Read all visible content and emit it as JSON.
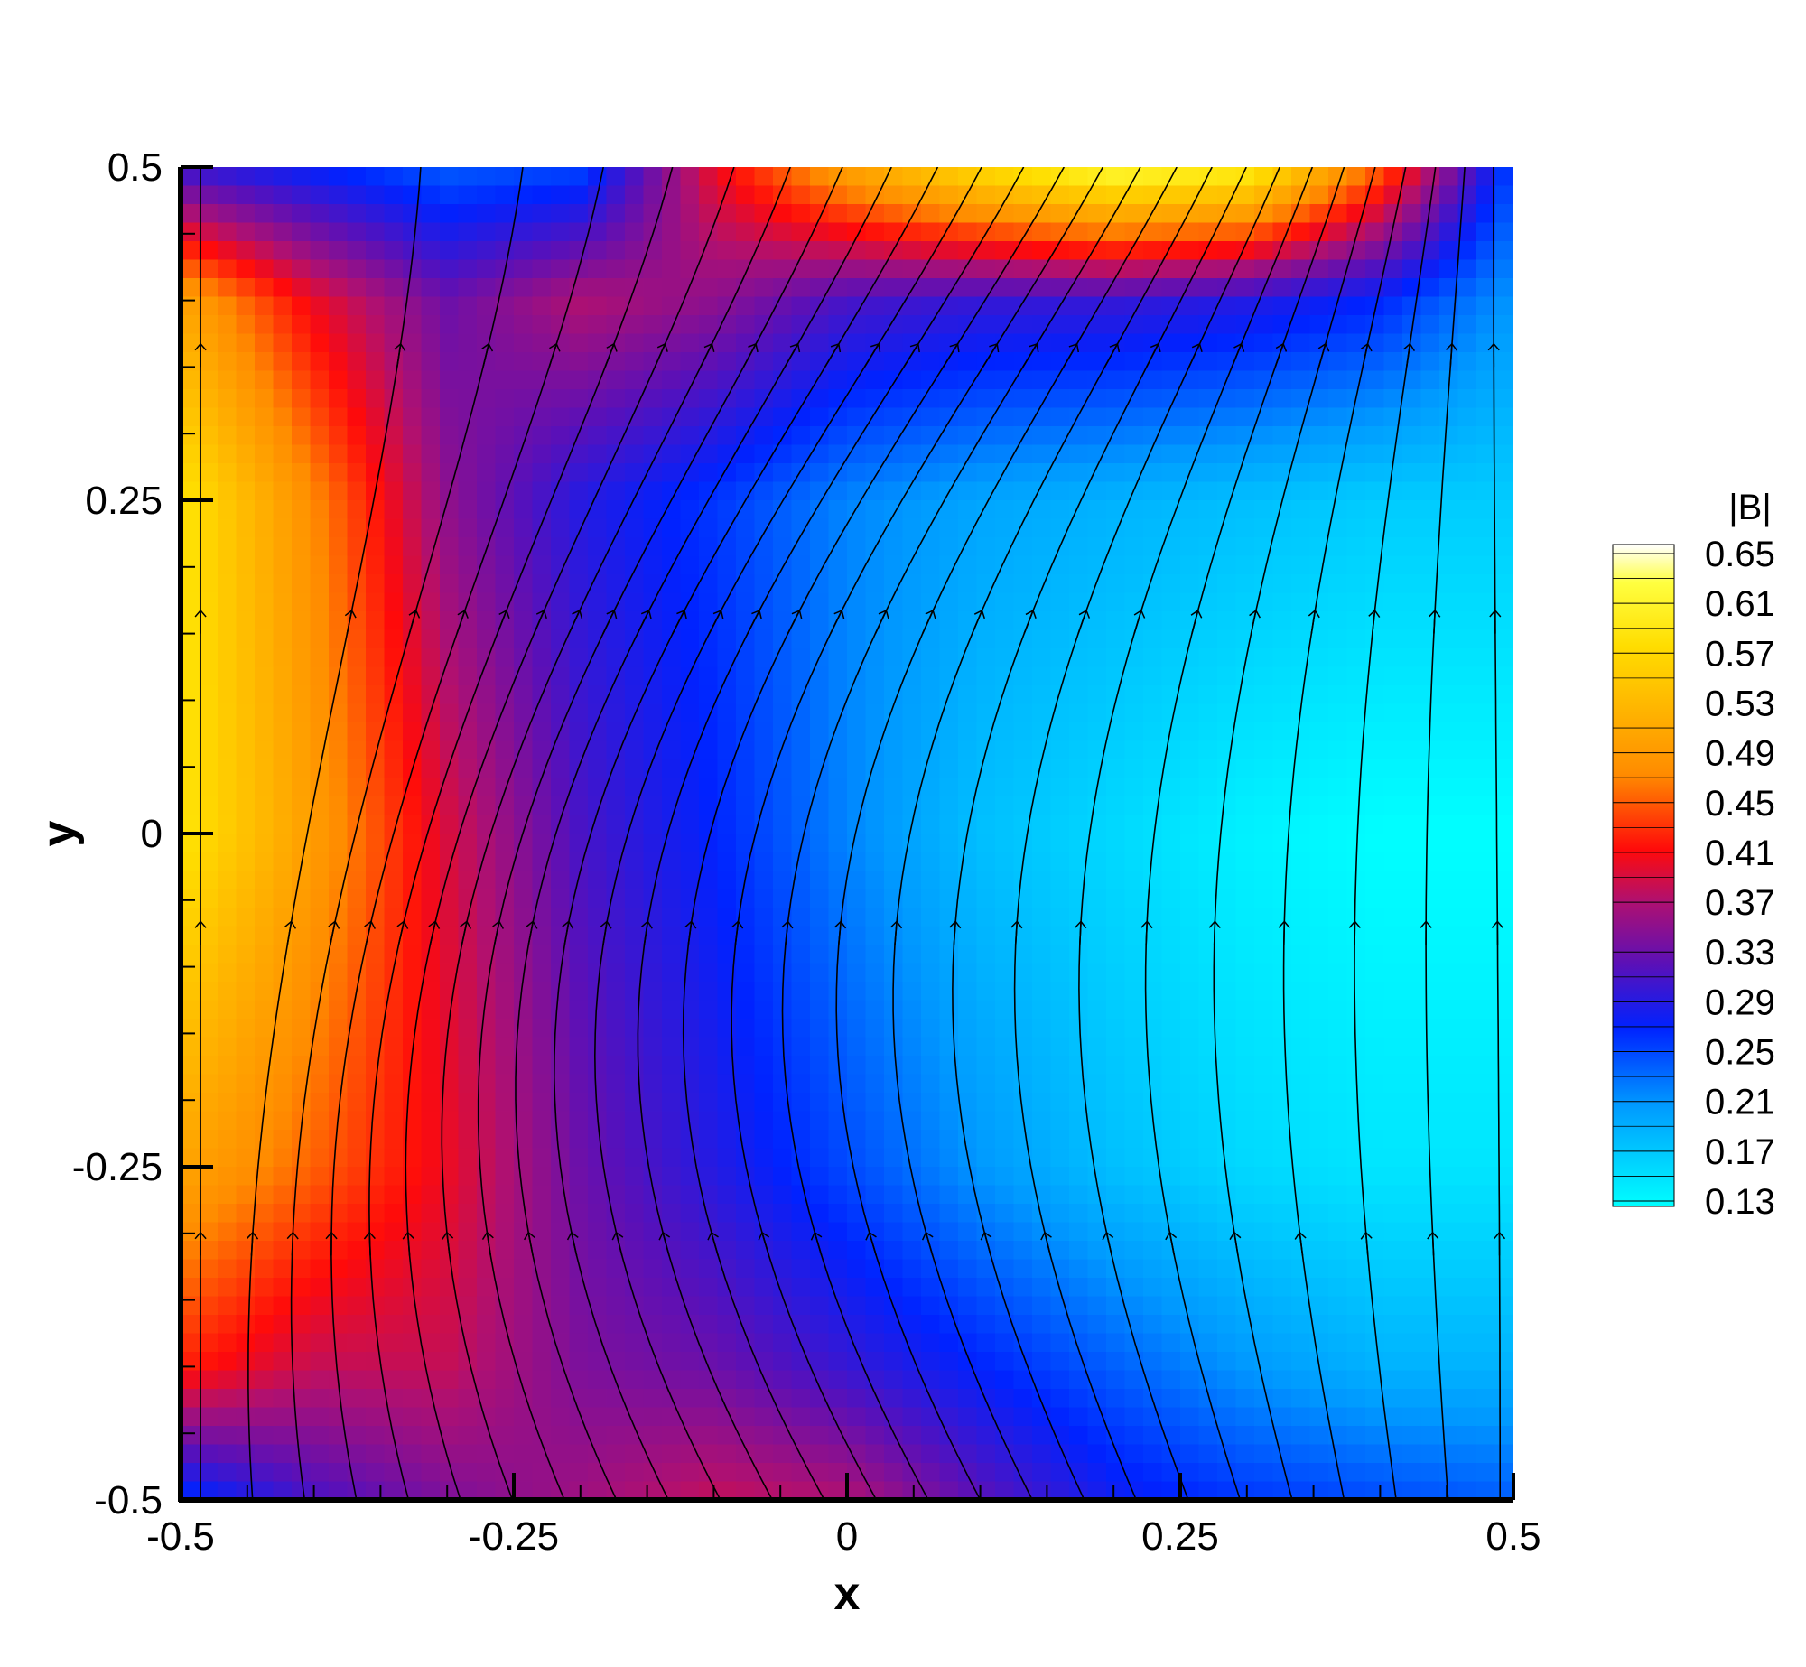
{
  "chart_data": {
    "type": "heatmap",
    "title": "",
    "xlabel": "x",
    "ylabel": "y",
    "xlim": [
      -0.5,
      0.5
    ],
    "ylim": [
      -0.5,
      0.5
    ],
    "x_ticks": [
      "-0.5",
      "-0.25",
      "0",
      "0.25",
      "0.5"
    ],
    "y_ticks": [
      "-0.5",
      "-0.25",
      "0",
      "0.25",
      "0.5"
    ],
    "x_tick_values": [
      -0.5,
      -0.25,
      0,
      0.25,
      0.5
    ],
    "y_tick_values": [
      -0.5,
      -0.25,
      0,
      0.25,
      0.5
    ],
    "colorbar": {
      "title": "|B|",
      "labels": [
        "0.65",
        "0.61",
        "0.57",
        "0.53",
        "0.49",
        "0.45",
        "0.41",
        "0.37",
        "0.33",
        "0.29",
        "0.25",
        "0.21",
        "0.17",
        "0.13"
      ],
      "values": [
        0.65,
        0.61,
        0.57,
        0.53,
        0.49,
        0.45,
        0.41,
        0.37,
        0.33,
        0.29,
        0.25,
        0.21,
        0.17,
        0.13
      ],
      "colormap": [
        [
          0.13,
          "#00ffff"
        ],
        [
          0.21,
          "#0099ff"
        ],
        [
          0.27,
          "#0022ff"
        ],
        [
          0.32,
          "#5a10b8"
        ],
        [
          0.37,
          "#b01070"
        ],
        [
          0.41,
          "#ff0a0a"
        ],
        [
          0.47,
          "#ff8c00"
        ],
        [
          0.57,
          "#ffdd00"
        ],
        [
          0.62,
          "#ffff40"
        ],
        [
          0.65,
          "#ffffff"
        ]
      ],
      "legend_position": "right"
    },
    "field_description": "magnitude |B| over unit square; streamlines of B overlaid",
    "field_samples": {
      "note": "approximate |B| values sampled on a grid",
      "x": [
        -0.5,
        -0.4,
        -0.3,
        -0.2,
        -0.1,
        0,
        0.1,
        0.2,
        0.3,
        0.4,
        0.5
      ],
      "y": [
        0.5,
        0.4,
        0.25,
        0,
        -0.25,
        -0.4,
        -0.5
      ],
      "values": [
        [
          0.3,
          0.27,
          0.24,
          0.25,
          0.4,
          0.5,
          0.57,
          0.62,
          0.6,
          0.45,
          0.25
        ],
        [
          0.5,
          0.4,
          0.33,
          0.37,
          0.35,
          0.31,
          0.3,
          0.3,
          0.29,
          0.27,
          0.21
        ],
        [
          0.58,
          0.47,
          0.35,
          0.29,
          0.26,
          0.22,
          0.2,
          0.19,
          0.18,
          0.17,
          0.17
        ],
        [
          0.58,
          0.49,
          0.39,
          0.31,
          0.27,
          0.22,
          0.18,
          0.16,
          0.14,
          0.13,
          0.13
        ],
        [
          0.5,
          0.45,
          0.4,
          0.33,
          0.29,
          0.25,
          0.21,
          0.18,
          0.16,
          0.15,
          0.15
        ],
        [
          0.42,
          0.38,
          0.38,
          0.34,
          0.33,
          0.3,
          0.27,
          0.24,
          0.21,
          0.19,
          0.19
        ],
        [
          0.26,
          0.31,
          0.34,
          0.36,
          0.38,
          0.37,
          0.32,
          0.28,
          0.26,
          0.25,
          0.24
        ]
      ]
    },
    "streamline_count": 26,
    "streamline_color": "#000000"
  }
}
